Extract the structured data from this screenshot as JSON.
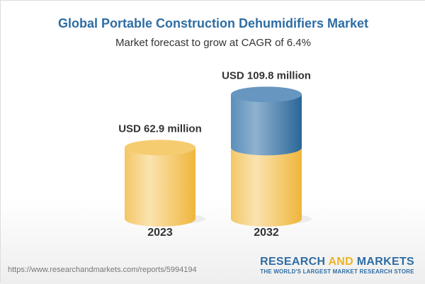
{
  "title": "Global Portable Construction Dehumidifiers Market",
  "subtitle": "Market forecast to grow at CAGR of 6.4%",
  "chart_data": {
    "type": "bar",
    "style": "3d-cylinder",
    "categories": [
      "2023",
      "2032"
    ],
    "values": [
      62.9,
      109.8
    ],
    "data_labels": [
      "USD 62.9 million",
      "USD 109.8 million"
    ],
    "unit": "USD million",
    "colors": {
      "base": "#f2c04c",
      "growth": "#3a78a8"
    }
  },
  "footer": {
    "url": "https://www.researchandmarkets.com/reports/5994194",
    "logo_part1": "RESEARCH ",
    "logo_and": "AND",
    "logo_part2": " MARKETS",
    "tagline": "THE WORLD'S LARGEST MARKET RESEARCH STORE"
  }
}
